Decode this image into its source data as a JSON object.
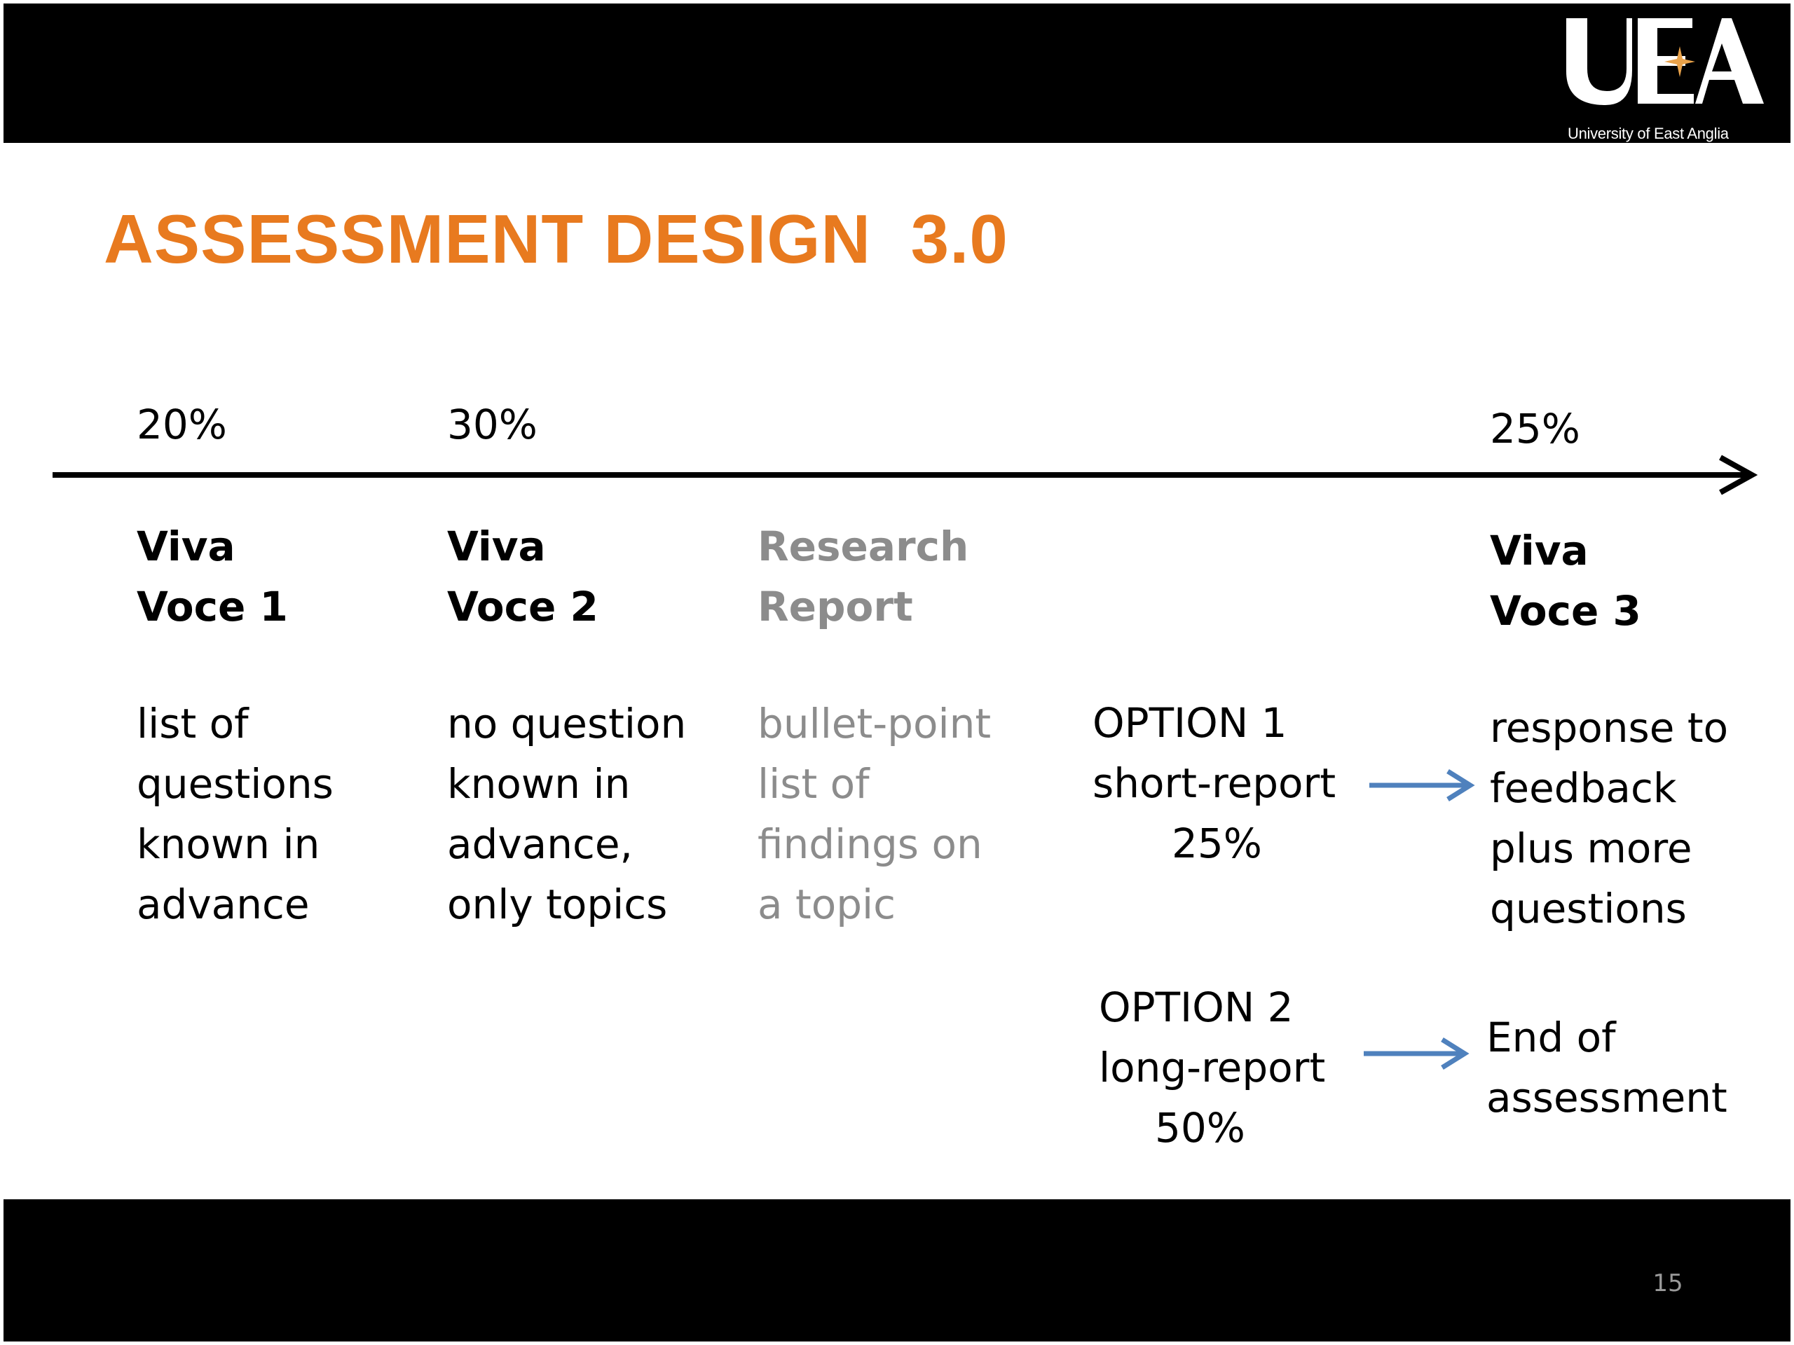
{
  "logo": {
    "mark": "UEA",
    "caption": "University of East Anglia",
    "star_color": "#e9a24a"
  },
  "title": "ASSESSMENT DESIGN  3.0",
  "colors": {
    "title": "#e87a1f",
    "muted_text": "#8c8c8c",
    "arrow_blue": "#4f81bd",
    "band": "#000000"
  },
  "timeline": {
    "weights": [
      "20%",
      "30%",
      "25%"
    ],
    "stages": [
      {
        "heading": [
          "Viva",
          "Voce 1"
        ],
        "description": [
          "list  of",
          "questions",
          "known in",
          "advance"
        ]
      },
      {
        "heading": [
          "Viva",
          "Voce 2"
        ],
        "description": [
          "no question",
          "known in",
          "advance,",
          "only topics"
        ]
      },
      {
        "heading": [
          "Research",
          "Report"
        ],
        "description": [
          "bullet-point",
          "list of",
          "findings on",
          "a topic"
        ],
        "muted": true
      },
      {
        "heading": [
          "Viva",
          "Voce 3"
        ],
        "description": [
          "response to",
          "feedback",
          "plus more",
          "questions"
        ]
      }
    ]
  },
  "options": [
    {
      "label": "OPTION 1",
      "report": "short-report",
      "weight": "25%",
      "outcome": [
        "response to",
        "feedback",
        "plus more",
        "questions"
      ]
    },
    {
      "label": "OPTION 2",
      "report": "long-report",
      "weight": "50%",
      "outcome": [
        "End of",
        "assessment"
      ]
    }
  ],
  "page_number": "15"
}
